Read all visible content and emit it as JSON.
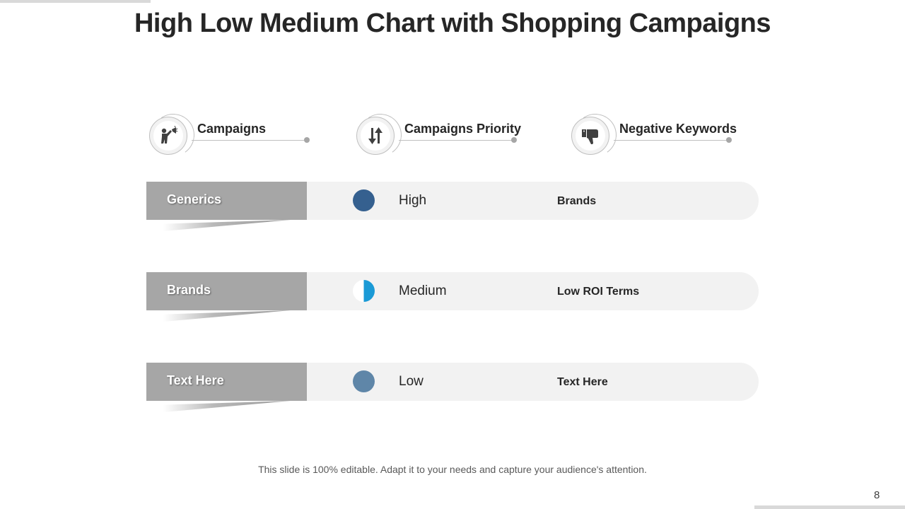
{
  "slide": {
    "title": "High Low Medium Chart with Shopping Campaigns",
    "footer": "This slide is 100% editable. Adapt it to your needs and capture your audience's attention.",
    "page_number": "8"
  },
  "headers": [
    {
      "label": "Campaigns",
      "icon": "megaphone-person-icon"
    },
    {
      "label": "Campaigns Priority",
      "icon": "up-down-arrows-icon"
    },
    {
      "label": "Negative Keywords",
      "icon": "thumbs-down-icon"
    }
  ],
  "rows": [
    {
      "campaign": "Generics",
      "priority": "High",
      "keyword": "Brands",
      "fill": 1.0,
      "dot_color": "#35608f"
    },
    {
      "campaign": "Brands",
      "priority": "Medium",
      "keyword": "Low ROI Terms",
      "fill": 0.5,
      "dot_color": "#1b9ad6"
    },
    {
      "campaign": "Text Here",
      "priority": "Low",
      "keyword": "Text Here",
      "fill": 1.0,
      "dot_color": "#5f86a8"
    }
  ],
  "colors": {
    "tab": "#a6a6a6",
    "bar": "#f2f2f2",
    "title": "#262626"
  }
}
